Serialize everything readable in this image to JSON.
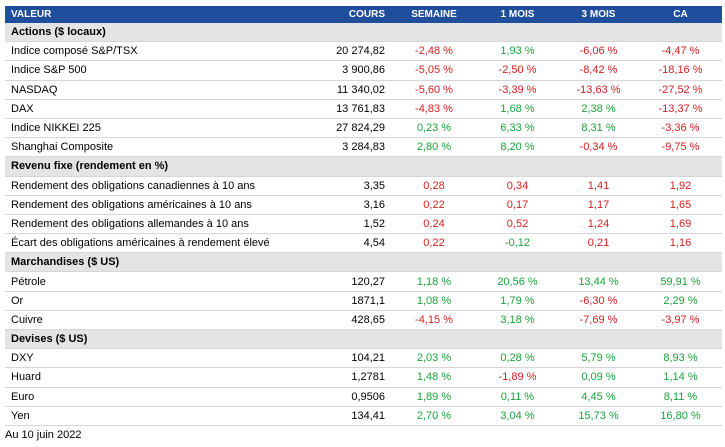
{
  "headers": [
    "VALEUR",
    "COURS",
    "SEMAINE",
    "1 MOIS",
    "3 MOIS",
    "CA"
  ],
  "colors": {
    "header_bg": "#1f4e9c",
    "section_bg": "#e4e4e4",
    "positive": "#1aa33a",
    "negative": "#d41f1f"
  },
  "sections": [
    {
      "title": "Actions ($ locaux)",
      "rows": [
        {
          "name": "Indice composé S&P/TSX",
          "cours": "20 274,82",
          "vals": [
            [
              "-2,48 %",
              "neg"
            ],
            [
              "1,93 %",
              "pos"
            ],
            [
              "-6,06 %",
              "neg"
            ],
            [
              "-4,47 %",
              "neg"
            ]
          ]
        },
        {
          "name": "Indice S&P 500",
          "cours": "3 900,86",
          "vals": [
            [
              "-5,05 %",
              "neg"
            ],
            [
              "-2,50 %",
              "neg"
            ],
            [
              "-8,42 %",
              "neg"
            ],
            [
              "-18,16 %",
              "neg"
            ]
          ]
        },
        {
          "name": "NASDAQ",
          "cours": "11 340,02",
          "vals": [
            [
              "-5,60 %",
              "neg"
            ],
            [
              "-3,39 %",
              "neg"
            ],
            [
              "-13,63 %",
              "neg"
            ],
            [
              "-27,52 %",
              "neg"
            ]
          ]
        },
        {
          "name": "DAX",
          "cours": "13 761,83",
          "vals": [
            [
              "-4,83 %",
              "neg"
            ],
            [
              "1,68 %",
              "pos"
            ],
            [
              "2,38 %",
              "pos"
            ],
            [
              "-13,37 %",
              "neg"
            ]
          ]
        },
        {
          "name": "Indice NIKKEI 225",
          "cours": "27 824,29",
          "vals": [
            [
              "0,23 %",
              "pos"
            ],
            [
              "6,33 %",
              "pos"
            ],
            [
              "8,31 %",
              "pos"
            ],
            [
              "-3,36 %",
              "neg"
            ]
          ]
        },
        {
          "name": "Shanghai Composite",
          "cours": "3 284,83",
          "vals": [
            [
              "2,80 %",
              "pos"
            ],
            [
              "8,20 %",
              "pos"
            ],
            [
              "-0,34 %",
              "neg"
            ],
            [
              "-9,75 %",
              "neg"
            ]
          ]
        }
      ]
    },
    {
      "title": "Revenu fixe (rendement en %)",
      "rows": [
        {
          "name": "Rendement des obligations canadiennes à 10 ans",
          "cours": "3,35",
          "vals": [
            [
              "0,28",
              "neg"
            ],
            [
              "0,34",
              "neg"
            ],
            [
              "1,41",
              "neg"
            ],
            [
              "1,92",
              "neg"
            ]
          ]
        },
        {
          "name": "Rendement des obligations américaines à 10 ans",
          "cours": "3,16",
          "vals": [
            [
              "0,22",
              "neg"
            ],
            [
              "0,17",
              "neg"
            ],
            [
              "1,17",
              "neg"
            ],
            [
              "1,65",
              "neg"
            ]
          ]
        },
        {
          "name": "Rendement des obligations allemandes à 10 ans",
          "cours": "1,52",
          "vals": [
            [
              "0,24",
              "neg"
            ],
            [
              "0,52",
              "neg"
            ],
            [
              "1,24",
              "neg"
            ],
            [
              "1,69",
              "neg"
            ]
          ]
        },
        {
          "name": "Écart des obligations américaines à rendement élevé",
          "cours": "4,54",
          "vals": [
            [
              "0,22",
              "neg"
            ],
            [
              "-0,12",
              "pos"
            ],
            [
              "0,21",
              "neg"
            ],
            [
              "1,16",
              "neg"
            ]
          ]
        }
      ]
    },
    {
      "title": "Marchandises ($ US)",
      "rows": [
        {
          "name": "Pétrole",
          "cours": "120,27",
          "vals": [
            [
              "1,18 %",
              "pos"
            ],
            [
              "20,56 %",
              "pos"
            ],
            [
              "13,44 %",
              "pos"
            ],
            [
              "59,91 %",
              "pos"
            ]
          ]
        },
        {
          "name": "Or",
          "cours": "1871,1",
          "vals": [
            [
              "1,08 %",
              "pos"
            ],
            [
              "1,79 %",
              "pos"
            ],
            [
              "-6,30 %",
              "neg"
            ],
            [
              "2,29 %",
              "pos"
            ]
          ]
        },
        {
          "name": "Cuivre",
          "cours": "428,65",
          "vals": [
            [
              "-4,15 %",
              "neg"
            ],
            [
              "3,18 %",
              "pos"
            ],
            [
              "-7,69 %",
              "neg"
            ],
            [
              "-3,97 %",
              "neg"
            ]
          ]
        }
      ]
    },
    {
      "title": "Devises ($ US)",
      "rows": [
        {
          "name": "DXY",
          "cours": "104,21",
          "vals": [
            [
              "2,03 %",
              "pos"
            ],
            [
              "0,28 %",
              "pos"
            ],
            [
              "5,79 %",
              "pos"
            ],
            [
              "8,93 %",
              "pos"
            ]
          ]
        },
        {
          "name": "Huard",
          "cours": "1,2781",
          "vals": [
            [
              "1,48 %",
              "pos"
            ],
            [
              "-1,89 %",
              "neg"
            ],
            [
              "0,09 %",
              "pos"
            ],
            [
              "1,14 %",
              "pos"
            ]
          ]
        },
        {
          "name": "Euro",
          "cours": "0,9506",
          "vals": [
            [
              "1,89 %",
              "pos"
            ],
            [
              "0,11 %",
              "pos"
            ],
            [
              "4,45 %",
              "pos"
            ],
            [
              "8,11 %",
              "pos"
            ]
          ]
        },
        {
          "name": "Yen",
          "cours": "134,41",
          "vals": [
            [
              "2,70 %",
              "pos"
            ],
            [
              "3,04 %",
              "pos"
            ],
            [
              "15,73 %",
              "pos"
            ],
            [
              "16,80 %",
              "pos"
            ]
          ]
        }
      ]
    }
  ],
  "footnote": "Au 10 juin 2022"
}
